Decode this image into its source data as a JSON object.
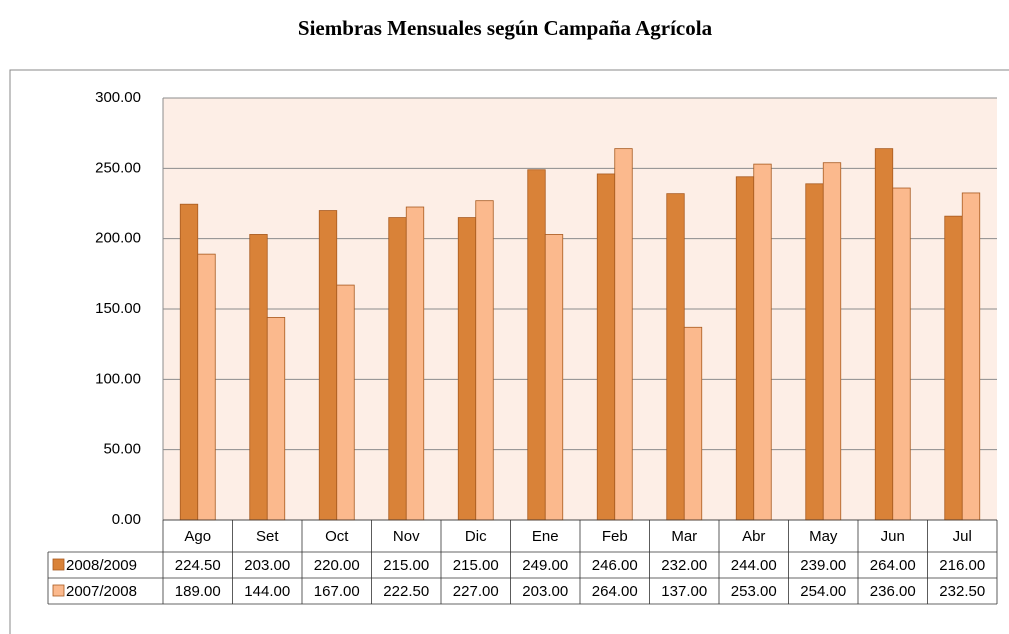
{
  "chart_data": {
    "type": "bar",
    "title": "Siembras Mensuales según Campaña Agrícola",
    "categories": [
      "Ago",
      "Set",
      "Oct",
      "Nov",
      "Dic",
      "Ene",
      "Feb",
      "Mar",
      "Abr",
      "May",
      "Jun",
      "Jul"
    ],
    "series": [
      {
        "name": "2008/2009",
        "color": "#d98238",
        "values": [
          224.5,
          203,
          220,
          215,
          215,
          249,
          246,
          232,
          244,
          239,
          264,
          216
        ],
        "value_labels": [
          "224.50",
          "203.00",
          "220.00",
          "215.00",
          "215.00",
          "249.00",
          "246.00",
          "232.00",
          "244.00",
          "239.00",
          "264.00",
          "216.00"
        ]
      },
      {
        "name": "2007/2008",
        "color": "#fbb98d",
        "values": [
          189,
          144,
          167,
          222.5,
          227,
          203,
          264,
          137,
          253,
          254,
          236,
          232.5
        ],
        "value_labels": [
          "189.00",
          "144.00",
          "167.00",
          "222.50",
          "227.00",
          "203.00",
          "264.00",
          "137.00",
          "253.00",
          "254.00",
          "236.00",
          "232.50"
        ]
      }
    ],
    "ylim": [
      0,
      300
    ],
    "yticks": [
      {
        "value": 0,
        "label": "0.00"
      },
      {
        "value": 50,
        "label": "50.00"
      },
      {
        "value": 100,
        "label": "100.00"
      },
      {
        "value": 150,
        "label": "150.00"
      },
      {
        "value": 200,
        "label": "200.00"
      },
      {
        "value": 250,
        "label": "250.00"
      },
      {
        "value": 300,
        "label": "300.00"
      }
    ],
    "grid": true
  }
}
